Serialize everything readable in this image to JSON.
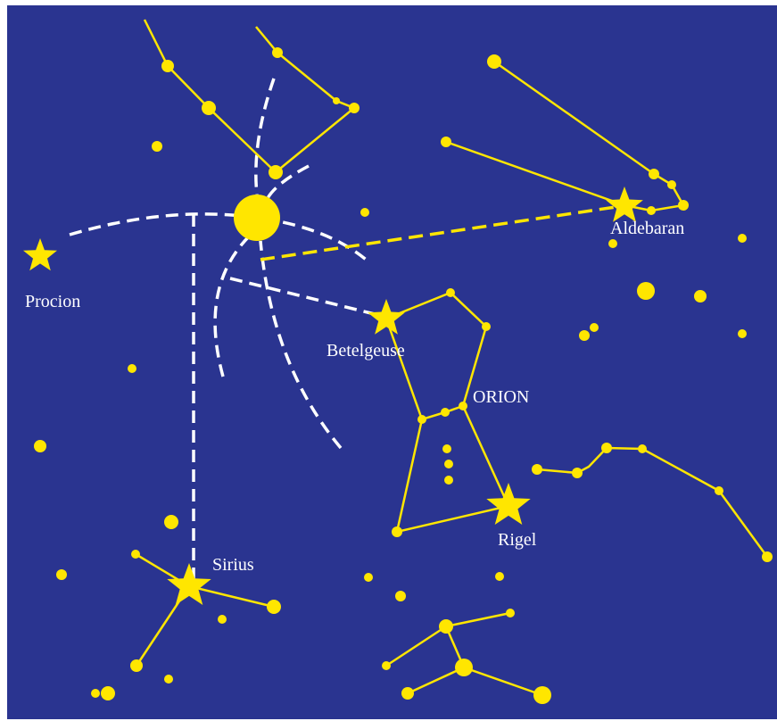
{
  "labels": {
    "procion": "Procion",
    "aldebaran": "Aldebaran",
    "betelgeuse": "Betelgeuse",
    "orion": "ORION",
    "rigel": "Rigel",
    "sirius": "Sirius"
  }
}
